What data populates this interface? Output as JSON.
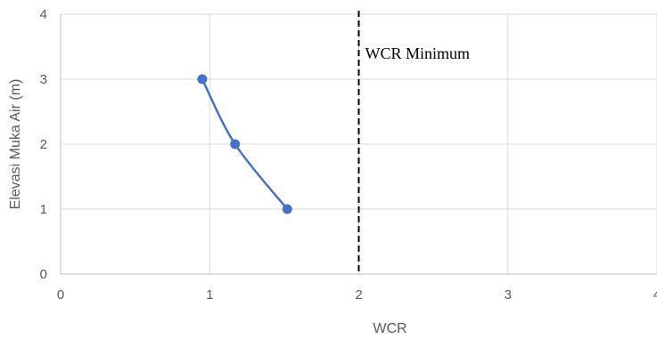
{
  "chart_data": {
    "type": "line",
    "title": "",
    "xlabel": "WCR",
    "ylabel": "Elevasi Muka Air (m)",
    "xlim": [
      0,
      4
    ],
    "ylim": [
      0,
      4
    ],
    "x_ticks": [
      "0",
      "1",
      "2",
      "3",
      "4"
    ],
    "y_ticks": [
      "0",
      "1",
      "2",
      "3",
      "4"
    ],
    "grid": true,
    "legend": "none",
    "series": [
      {
        "color": "#4472C4",
        "points": [
          {
            "x": 0.95,
            "y": 3
          },
          {
            "x": 1.17,
            "y": 2
          },
          {
            "x": 1.52,
            "y": 1
          }
        ]
      }
    ],
    "reference_line": {
      "orientation": "vertical",
      "x": 2,
      "style": "dashed",
      "color": "#000000",
      "label": "WCR Minimum"
    }
  }
}
